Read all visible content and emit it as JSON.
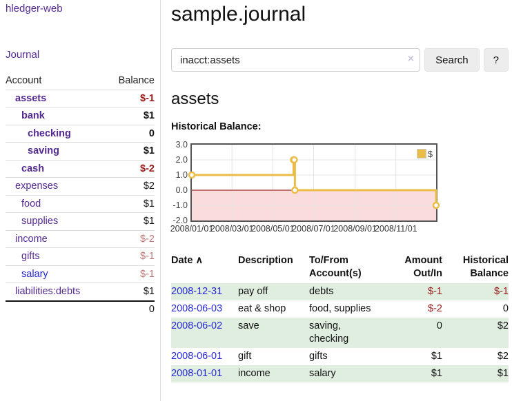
{
  "sidebar": {
    "brand": "hledger-web",
    "journal_link": "Journal",
    "accounts_header": {
      "account": "Account",
      "balance": "Balance"
    },
    "accounts": [
      {
        "name": "assets",
        "indent": 1,
        "bold": true,
        "balance": "$-1",
        "balance_style": "neg-strong",
        "name_style": "purple"
      },
      {
        "name": "bank",
        "indent": 2,
        "bold": true,
        "balance": "$1",
        "balance_style": "plain",
        "name_style": "purple"
      },
      {
        "name": "checking",
        "indent": 3,
        "bold": true,
        "balance": "0",
        "balance_style": "plain",
        "name_style": "purple"
      },
      {
        "name": "saving",
        "indent": 3,
        "bold": true,
        "balance": "$1",
        "balance_style": "plain",
        "name_style": "purple"
      },
      {
        "name": "cash",
        "indent": 2,
        "bold": true,
        "balance": "$-2",
        "balance_style": "neg-strong",
        "name_style": "purple"
      },
      {
        "name": "expenses",
        "indent": 1,
        "bold": false,
        "balance": "$2",
        "balance_style": "plain",
        "name_style": "purple"
      },
      {
        "name": "food",
        "indent": 2,
        "bold": false,
        "balance": "$1",
        "balance_style": "plain",
        "name_style": "purple"
      },
      {
        "name": "supplies",
        "indent": 2,
        "bold": false,
        "balance": "$1",
        "balance_style": "plain",
        "name_style": "purple"
      },
      {
        "name": "income",
        "indent": 1,
        "bold": false,
        "balance": "$-2",
        "balance_style": "neg-soft",
        "name_style": "purple"
      },
      {
        "name": "gifts",
        "indent": 2,
        "bold": false,
        "balance": "$-1",
        "balance_style": "neg-soft",
        "name_style": "purple"
      },
      {
        "name": "salary",
        "indent": 2,
        "bold": false,
        "balance": "$-1",
        "balance_style": "neg-soft",
        "name_style": "blue"
      },
      {
        "name": "liabilities:debts",
        "indent": 1,
        "bold": false,
        "balance": "$1",
        "balance_style": "plain",
        "name_style": "purple"
      }
    ],
    "total": "0"
  },
  "header": {
    "title": "sample.journal"
  },
  "search": {
    "value": "inacct:assets",
    "clear_icon": "×",
    "button": "Search",
    "help_button": "?"
  },
  "account_page": {
    "title": "assets",
    "chart_label": "Historical Balance:"
  },
  "chart_data": {
    "type": "line",
    "step": true,
    "title": "Historical Balance:",
    "series": [
      {
        "name": "$",
        "color": "#e9bd47",
        "points": [
          [
            "2008-01-01",
            1
          ],
          [
            "2008-06-01",
            2
          ],
          [
            "2008-06-02",
            2
          ],
          [
            "2008-06-03",
            0
          ],
          [
            "2008-12-31",
            -1
          ]
        ]
      }
    ],
    "x_range": [
      "2008-01-01",
      "2008-12-31"
    ],
    "y_range": [
      -2,
      3
    ],
    "y_ticks": [
      {
        "value": 3,
        "label": "3.0"
      },
      {
        "value": 2,
        "label": "2.0"
      },
      {
        "value": 1,
        "label": "1.0"
      },
      {
        "value": 0,
        "label": "0.0"
      },
      {
        "value": -1,
        "label": "-1.0"
      },
      {
        "value": -2,
        "label": "-2.0"
      }
    ],
    "x_ticks": [
      {
        "date": "2008-01-01",
        "label": "2008/01/01"
      },
      {
        "date": "2008-03-01",
        "label": "2008/03/01"
      },
      {
        "date": "2008-05-01",
        "label": "2008/05/01"
      },
      {
        "date": "2008-07-01",
        "label": "2008/07/01"
      },
      {
        "date": "2008-09-01",
        "label": "2008/09/01"
      },
      {
        "date": "2008-11-01",
        "label": "2008/11/01"
      }
    ],
    "grid": true,
    "legend_position": "top-right",
    "negative_region_fill": "#fbdcdc",
    "zero_line_color": "#8b0000"
  },
  "register": {
    "columns": [
      {
        "label": "Date",
        "sort_icon": "∧"
      },
      {
        "label": "Description"
      },
      {
        "label": "To/From Account(s)"
      },
      {
        "label": "Amount Out/In"
      },
      {
        "label": "Historical Balance"
      }
    ],
    "rows": [
      {
        "date": "2008-12-31",
        "description": "pay off",
        "accounts": "debts",
        "amount": "$-1",
        "amount_negative": true,
        "balance": "$-1",
        "balance_negative": true
      },
      {
        "date": "2008-06-03",
        "description": "eat & shop",
        "accounts": "food, supplies",
        "amount": "$-2",
        "amount_negative": true,
        "balance": "0",
        "balance_negative": false
      },
      {
        "date": "2008-06-02",
        "description": "save",
        "accounts": "saving, checking",
        "amount": "0",
        "amount_negative": false,
        "balance": "$2",
        "balance_negative": false
      },
      {
        "date": "2008-06-01",
        "description": "gift",
        "accounts": "gifts",
        "amount": "$1",
        "amount_negative": false,
        "balance": "$2",
        "balance_negative": false
      },
      {
        "date": "2008-01-01",
        "description": "income",
        "accounts": "salary",
        "amount": "$1",
        "amount_negative": false,
        "balance": "$1",
        "balance_negative": false
      }
    ]
  },
  "colors": {
    "link_purple": "#542a92",
    "link_blue": "#2727d6",
    "negative_strong": "#981a1a",
    "negative_soft": "#bd7878",
    "row_stripe_green": "#dfeedf",
    "chart_gold": "#e9bd47",
    "chart_negative_fill": "#fbdcdc",
    "chart_zero_line": "#8b0000"
  }
}
